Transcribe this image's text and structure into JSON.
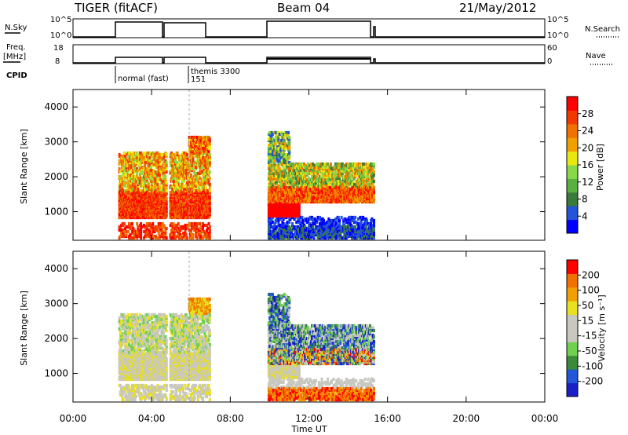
{
  "header": {
    "radar": "TIGER (fitACF)",
    "beam": "Beam 04",
    "date": "21/May/2012"
  },
  "top_panels": {
    "nsky_label": "N.Sky",
    "nsky_ticks": [
      "10^5",
      "10^0"
    ],
    "nsearch_label": "N.Search",
    "nsearch_ticks": [
      "10^5",
      "10^0"
    ],
    "freq_label_1": "Freq.",
    "freq_label_2": "[MHz]",
    "freq_ticks": [
      "18",
      "8"
    ],
    "nave_label": "Nave",
    "nave_ticks": [
      "60",
      "0"
    ],
    "cpid_label": "CPID",
    "cpid_annotations": [
      "normal (fast)",
      "themis 3300",
      "151"
    ]
  },
  "power_panel": {
    "ylabel": "Slant Range [km]",
    "yticks": [
      "4000",
      "3000",
      "2000",
      "1000"
    ],
    "colorbar_label": "Power [dB]",
    "colorbar_ticks": [
      "28",
      "24",
      "20",
      "16",
      "12",
      "8",
      "4"
    ],
    "colors": [
      "#0000ff",
      "#2255d8",
      "#3a7a3a",
      "#58b040",
      "#88d848",
      "#e8e810",
      "#f0a000",
      "#f07000",
      "#f03800",
      "#ff0000"
    ]
  },
  "velocity_panel": {
    "ylabel": "Slant Range [km]",
    "yticks": [
      "4000",
      "3000",
      "2000",
      "1000"
    ],
    "colorbar_label": "Velocity [m s⁻¹]",
    "colorbar_ticks": [
      "200",
      "100",
      "50",
      "15",
      "-15",
      "-50",
      "-100",
      "-200"
    ],
    "colors": [
      "#1a20c8",
      "#2058d8",
      "#3a8a3a",
      "#70d050",
      "#c8c8c0",
      "#c8c8c0",
      "#e8e020",
      "#f0a000",
      "#f07000",
      "#ff0000"
    ]
  },
  "xaxis": {
    "label": "Time UT",
    "ticks": [
      "00:00",
      "04:00",
      "08:00",
      "12:00",
      "16:00",
      "20:00",
      "00:00"
    ]
  },
  "chart_data": {
    "type": "heatmap",
    "x_range_hours": [
      0,
      24
    ],
    "y_range_km": [
      180,
      4500
    ],
    "operating_intervals_UT_hours": [
      [
        2.3,
        4.7
      ],
      [
        4.9,
        6.9
      ],
      [
        9.9,
        15.3
      ]
    ],
    "power_db_range": [
      0,
      32
    ],
    "velocity_range": [
      -250,
      250
    ],
    "dominant_echo_bands_km": [
      [
        900,
        1500
      ],
      [
        1200,
        2300
      ],
      [
        2600,
        3200
      ],
      [
        300,
        500
      ]
    ]
  }
}
